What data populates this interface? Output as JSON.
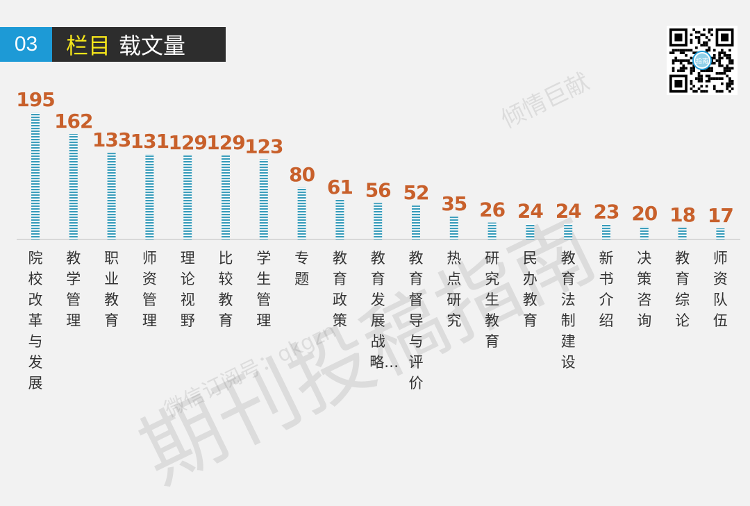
{
  "header": {
    "number": "03",
    "title_highlight": "栏目",
    "title_rest": "载文量"
  },
  "watermarks": {
    "main": "期刊投稿指南",
    "top": "倾情巨献",
    "bottom": "微信订阅号：qkgzn"
  },
  "qr_label": "指南",
  "chart_data": {
    "type": "bar",
    "title": "",
    "xlabel": "",
    "ylabel": "",
    "categories": [
      "院校改革与发展",
      "教学管理",
      "职业教育",
      "师资管理",
      "理论视野",
      "比较教育",
      "学生管理",
      "专题",
      "教育政策",
      "教育发展战略…",
      "教育督导与评价",
      "热点研究",
      "研究生教育",
      "民办教育",
      "教育法制建设",
      "新书介绍",
      "决策咨询",
      "教育综论",
      "师资队伍"
    ],
    "values": [
      195,
      162,
      133,
      131,
      129,
      129,
      123,
      80,
      61,
      56,
      52,
      35,
      26,
      24,
      24,
      23,
      20,
      18,
      17
    ],
    "value_labels": [
      "195",
      "162",
      "133",
      "131",
      "129",
      "129",
      "123",
      "80",
      "61",
      "56",
      "52",
      "35",
      "26",
      "24",
      "24",
      "23",
      "20",
      "18",
      "17"
    ],
    "ylim": [
      0,
      195
    ],
    "grid": false,
    "colors": {
      "bar": "#3a9dbb",
      "value": "#c8602b",
      "header_accent": "#1d9ad6",
      "header_dark": "#2d2d2d",
      "highlight": "#f6e61a"
    }
  }
}
